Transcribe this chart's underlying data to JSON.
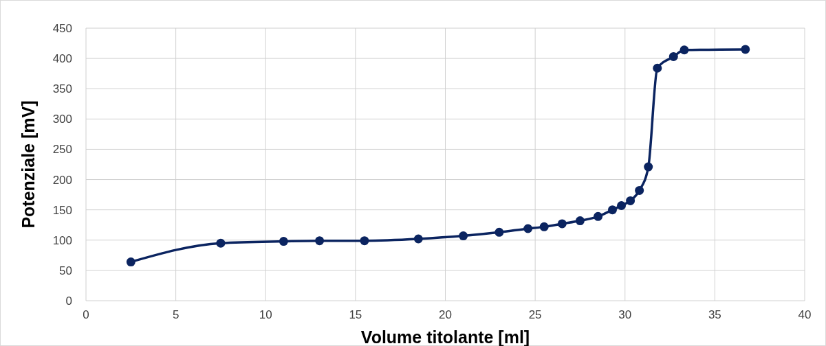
{
  "chart_data": {
    "type": "line",
    "xlabel": "Volume titolante [ml]",
    "ylabel": "Potenziale [mV]",
    "xlim": [
      0,
      40
    ],
    "xticks": [
      0,
      5,
      10,
      15,
      20,
      25,
      30,
      35,
      40
    ],
    "ylim": [
      0,
      450
    ],
    "yticks": [
      0,
      50,
      100,
      150,
      200,
      250,
      300,
      350,
      400,
      450
    ],
    "grid": true,
    "marker": "circle",
    "line_style": "solid",
    "series": [
      {
        "color": "#0b2460",
        "x": [
          2.5,
          7.5,
          11,
          13,
          15.5,
          18.5,
          21,
          23,
          24.6,
          25.5,
          26.5,
          27.5,
          28.5,
          29.3,
          29.8,
          30.3,
          30.8,
          31.3,
          31.8,
          32.7,
          33.3,
          36.7
        ],
        "values": [
          64,
          95,
          98,
          99,
          99,
          102,
          107,
          113,
          119,
          122,
          127,
          132,
          139,
          150,
          157,
          165,
          182,
          221,
          384,
          403,
          414,
          415
        ]
      }
    ]
  }
}
